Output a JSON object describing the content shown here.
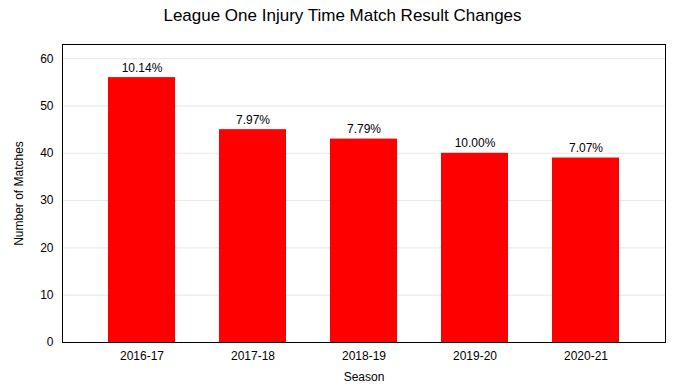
{
  "chart_data": {
    "type": "bar",
    "title": "League One Injury Time Match Result Changes",
    "categories": [
      "2016-17",
      "2017-18",
      "2018-19",
      "2019-20",
      "2020-21"
    ],
    "values": [
      56,
      45,
      43,
      40,
      39
    ],
    "annotations": [
      "10.14%",
      "7.97%",
      "7.79%",
      "10.00%",
      "7.07%"
    ],
    "color": "#ff0000",
    "xlabel": "Season",
    "ylabel": "Number of Matches",
    "ylim": [
      0,
      63
    ],
    "yticks": [
      0,
      10,
      20,
      30,
      40,
      50,
      60
    ],
    "grid": true
  }
}
